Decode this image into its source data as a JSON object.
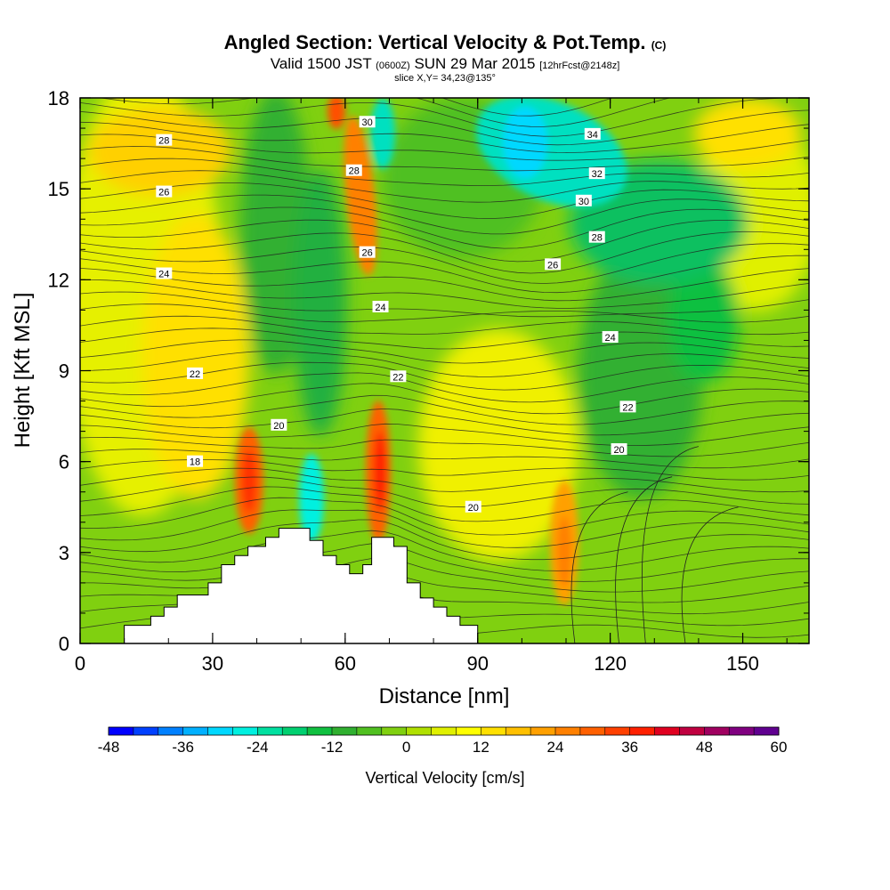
{
  "chart_data": {
    "type": "heatmap",
    "title": "Angled Section: Vertical Velocity & Pot.Temp.",
    "title_suffix": "(C)",
    "subtitle_main1": "Valid 1500 JST",
    "subtitle_small1": "(0600Z)",
    "subtitle_main2": "SUN 29 Mar 2015",
    "subtitle_small2": "[12hrFcst@2148z]",
    "slice_text": "slice X,Y= 34,23@135°",
    "xlabel": "Distance [nm]",
    "ylabel": "Height [Kft MSL]",
    "xlim": [
      0,
      165
    ],
    "ylim": [
      0,
      18
    ],
    "x_ticks": [
      "0",
      "30",
      "60",
      "90",
      "120",
      "150"
    ],
    "y_ticks": [
      "0",
      "3",
      "6",
      "9",
      "12",
      "15",
      "18"
    ],
    "colorbar": {
      "label": "Vertical Velocity [cm/s]",
      "tick_labels": [
        "-48",
        "-36",
        "-24",
        "-12",
        "0",
        "12",
        "24",
        "36",
        "48",
        "60"
      ],
      "min": -48,
      "max": 60,
      "step": 4,
      "colors": [
        "#0000ff",
        "#0040ff",
        "#0080ff",
        "#00b0ff",
        "#00d8ff",
        "#00f0e0",
        "#00e0a0",
        "#00d070",
        "#10c040",
        "#30b030",
        "#50c020",
        "#80d010",
        "#b0e000",
        "#e0f000",
        "#ffff00",
        "#ffe000",
        "#ffc000",
        "#ffa000",
        "#ff8000",
        "#ff6000",
        "#ff4000",
        "#ff2000",
        "#e00020",
        "#c00040",
        "#a00060",
        "#800080",
        "#600090"
      ]
    },
    "vertical_velocity_features": [
      {
        "x": 38,
        "y": 5.5,
        "value": 36
      },
      {
        "x": 63,
        "y": 15.0,
        "value": 24
      },
      {
        "x": 66,
        "y": 17.5,
        "value": 28
      },
      {
        "x": 69,
        "y": 6.0,
        "value": 40
      },
      {
        "x": 110,
        "y": 3.0,
        "value": 24
      },
      {
        "x": 52,
        "y": 4.5,
        "value": -24
      },
      {
        "x": 70,
        "y": 16.5,
        "value": -22
      },
      {
        "x": 100,
        "y": 16.5,
        "value": -28
      },
      {
        "x": 110,
        "y": 14.5,
        "value": -20
      },
      {
        "x": 55,
        "y": 12.0,
        "value": -8
      },
      {
        "x": 135,
        "y": 8.0,
        "value": -10
      }
    ],
    "theta_contour_labels": [
      {
        "text": "18",
        "x": 26,
        "y": 6.0
      },
      {
        "text": "20",
        "x": 45,
        "y": 7.2
      },
      {
        "text": "20",
        "x": 89,
        "y": 4.5
      },
      {
        "text": "20",
        "x": 122,
        "y": 6.4
      },
      {
        "text": "22",
        "x": 26,
        "y": 8.9
      },
      {
        "text": "22",
        "x": 72,
        "y": 8.8
      },
      {
        "text": "22",
        "x": 124,
        "y": 7.8
      },
      {
        "text": "24",
        "x": 19,
        "y": 12.2
      },
      {
        "text": "24",
        "x": 68,
        "y": 11.1
      },
      {
        "text": "24",
        "x": 120,
        "y": 10.1
      },
      {
        "text": "26",
        "x": 19,
        "y": 14.9
      },
      {
        "text": "26",
        "x": 65,
        "y": 12.9
      },
      {
        "text": "26",
        "x": 107,
        "y": 12.5
      },
      {
        "text": "28",
        "x": 19,
        "y": 16.6
      },
      {
        "text": "28",
        "x": 62,
        "y": 15.6
      },
      {
        "text": "28",
        "x": 117,
        "y": 13.4
      },
      {
        "text": "30",
        "x": 65,
        "y": 17.2
      },
      {
        "text": "30",
        "x": 114,
        "y": 14.6
      },
      {
        "text": "32",
        "x": 117,
        "y": 15.5
      },
      {
        "text": "34",
        "x": 116,
        "y": 16.8
      }
    ],
    "terrain_kft": [
      [
        0,
        0
      ],
      [
        10,
        0
      ],
      [
        10,
        0.6
      ],
      [
        16,
        0.6
      ],
      [
        16,
        0.9
      ],
      [
        19,
        0.9
      ],
      [
        19,
        1.2
      ],
      [
        22,
        1.2
      ],
      [
        22,
        1.6
      ],
      [
        29,
        1.6
      ],
      [
        29,
        2.0
      ],
      [
        32,
        2.0
      ],
      [
        32,
        2.6
      ],
      [
        35,
        2.6
      ],
      [
        35,
        2.9
      ],
      [
        38,
        2.9
      ],
      [
        38,
        3.2
      ],
      [
        42,
        3.2
      ],
      [
        42,
        3.5
      ],
      [
        45,
        3.5
      ],
      [
        45,
        3.8
      ],
      [
        52,
        3.8
      ],
      [
        52,
        3.4
      ],
      [
        55,
        3.4
      ],
      [
        55,
        2.9
      ],
      [
        58,
        2.9
      ],
      [
        58,
        2.6
      ],
      [
        61,
        2.6
      ],
      [
        61,
        2.3
      ],
      [
        64,
        2.3
      ],
      [
        64,
        2.6
      ],
      [
        66,
        2.6
      ],
      [
        66,
        3.5
      ],
      [
        71,
        3.5
      ],
      [
        71,
        3.2
      ],
      [
        74,
        3.2
      ],
      [
        74,
        2.0
      ],
      [
        77,
        2.0
      ],
      [
        77,
        1.5
      ],
      [
        80,
        1.5
      ],
      [
        80,
        1.2
      ],
      [
        83,
        1.2
      ],
      [
        83,
        0.9
      ],
      [
        86,
        0.9
      ],
      [
        86,
        0.6
      ],
      [
        90,
        0.6
      ],
      [
        90,
        0
      ]
    ],
    "grid": false
  }
}
